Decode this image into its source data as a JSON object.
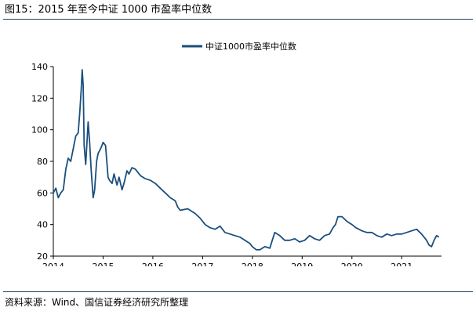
{
  "header": {
    "title": "图15：2015 年至今中证 1000 市盈率中位数"
  },
  "footer": {
    "source": "资料来源：Wind、国信证券经济研究所整理"
  },
  "colors": {
    "series": "#1b4f7e",
    "axis": "#000000",
    "rule": "#1f3a5f"
  },
  "chart_data": {
    "type": "line",
    "title": "",
    "xlabel": "",
    "ylabel": "",
    "legend_position": "top-center",
    "grid": false,
    "xlim": [
      2014.0,
      2021.8
    ],
    "ylim": [
      20,
      140
    ],
    "xticks": [
      2014,
      2015,
      2016,
      2017,
      2018,
      2019,
      2020,
      2021
    ],
    "xtick_labels": [
      "2014",
      "2015",
      "2016",
      "2017",
      "2018",
      "2019",
      "2020",
      "2021"
    ],
    "yticks": [
      20,
      40,
      60,
      80,
      100,
      120,
      140
    ],
    "ytick_labels": [
      "20",
      "40",
      "60",
      "80",
      "100",
      "120",
      "140"
    ],
    "series": [
      {
        "name": "中证1000市盈率中位数",
        "x": [
          2014.0,
          2014.05,
          2014.1,
          2014.15,
          2014.2,
          2014.25,
          2014.3,
          2014.35,
          2014.4,
          2014.45,
          2014.5,
          2014.53,
          2014.56,
          2014.58,
          2014.6,
          2014.62,
          2014.65,
          2014.7,
          2014.73,
          2014.76,
          2014.8,
          2014.83,
          2014.87,
          2014.9,
          2014.95,
          2015.0,
          2015.05,
          2015.1,
          2015.13,
          2015.18,
          2015.22,
          2015.28,
          2015.32,
          2015.38,
          2015.42,
          2015.48,
          2015.52,
          2015.58,
          2015.65,
          2015.75,
          2015.85,
          2015.95,
          2016.05,
          2016.15,
          2016.25,
          2016.35,
          2016.45,
          2016.5,
          2016.55,
          2016.7,
          2016.85,
          2016.95,
          2017.05,
          2017.15,
          2017.25,
          2017.35,
          2017.45,
          2017.55,
          2017.65,
          2017.75,
          2017.85,
          2017.95,
          2018.0,
          2018.08,
          2018.15,
          2018.25,
          2018.35,
          2018.4,
          2018.45,
          2018.55,
          2018.65,
          2018.75,
          2018.85,
          2018.95,
          2019.05,
          2019.15,
          2019.25,
          2019.35,
          2019.45,
          2019.55,
          2019.62,
          2019.67,
          2019.72,
          2019.8,
          2019.9,
          2020.0,
          2020.08,
          2020.2,
          2020.3,
          2020.4,
          2020.5,
          2020.6,
          2020.7,
          2020.8,
          2020.9,
          2021.0,
          2021.1,
          2021.2,
          2021.3,
          2021.4,
          2021.45,
          2021.5,
          2021.55,
          2021.6,
          2021.65,
          2021.7,
          2021.75
        ],
        "y": [
          60,
          63,
          57,
          60,
          62,
          75,
          82,
          80,
          88,
          96,
          98,
          110,
          125,
          138,
          128,
          90,
          78,
          105,
          92,
          75,
          57,
          62,
          80,
          85,
          88,
          92,
          90,
          70,
          68,
          66,
          72,
          65,
          70,
          62,
          66,
          74,
          72,
          76,
          75,
          71,
          69,
          68,
          66,
          63,
          60,
          57,
          55,
          51,
          49,
          50,
          47,
          44,
          40,
          38,
          37,
          39,
          35,
          34,
          33,
          32,
          30,
          28,
          26,
          24,
          24,
          26,
          25,
          30,
          35,
          33,
          30,
          30,
          31,
          29,
          30,
          33,
          31,
          30,
          33,
          34,
          38,
          40,
          45,
          45,
          42,
          40,
          38,
          36,
          35,
          35,
          33,
          32,
          34,
          33,
          34,
          34,
          35,
          36,
          37,
          34,
          32,
          30,
          27,
          26,
          30,
          33,
          32
        ]
      }
    ]
  }
}
